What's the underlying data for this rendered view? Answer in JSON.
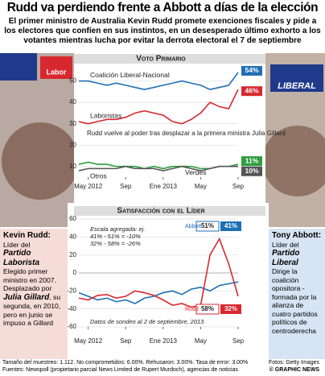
{
  "header": {
    "title": "Rudd va perdiendo frente a Abbott a días de la elección",
    "subtitle": "El primer ministro de Australia Kevin Rudd promete exenciones fiscales y pide a los electores que confíen en sus instintos, en un desesperado último exhorto a los votantes mientras lucha por evitar la derrota electoral el 7 de septiembre"
  },
  "photos": {
    "left_logo": "Labor",
    "right_logo": "LIBERAL"
  },
  "chart_data": [
    {
      "type": "line",
      "title": "Voto Primario",
      "categories": [
        null,
        "May 2012",
        null,
        null,
        null,
        "Sep",
        null,
        null,
        null,
        "Ene 2013",
        null,
        null,
        null,
        "May",
        null,
        null,
        null,
        "Sep"
      ],
      "ylim": [
        5,
        57
      ],
      "yticks": [
        10,
        20,
        30,
        40,
        50
      ],
      "grid": true,
      "series": [
        {
          "name": "Coalición Liberal-Nacional",
          "color": "#1f6fb5",
          "values": [
            50,
            50,
            49,
            48,
            49,
            48,
            47,
            46,
            47,
            48,
            49,
            50,
            49,
            48,
            46,
            47,
            48,
            54
          ],
          "label": "54%"
        },
        {
          "name": "Laboristas",
          "color": "#d7282f",
          "values": [
            31,
            30,
            31,
            32,
            32,
            33,
            35,
            36,
            35,
            34,
            31,
            30,
            32,
            35,
            40,
            38,
            37,
            46
          ],
          "label": "46%"
        },
        {
          "name": "Verdes",
          "color": "#2e9e3e",
          "values": [
            11,
            12,
            11,
            11,
            10,
            10,
            10,
            9,
            10,
            9,
            10,
            10,
            10,
            9,
            9,
            10,
            10,
            11
          ],
          "label": "11%"
        },
        {
          "name": "Otros",
          "color": "#555555",
          "values": [
            8,
            9,
            9,
            9,
            9,
            10,
            9,
            9,
            9,
            8,
            9,
            10,
            9,
            8,
            9,
            10,
            10,
            10
          ],
          "label": "10%"
        }
      ],
      "annotations": [
        "Rudd vuelve al poder tras desplazar a la primera ministra Julia Gillard"
      ]
    },
    {
      "type": "line",
      "title": "Satisfacción con el Líder",
      "categories": [
        null,
        "May 2012",
        null,
        null,
        null,
        "Sep",
        null,
        null,
        null,
        "Ene 2013",
        null,
        null,
        null,
        "May",
        null,
        null,
        null,
        "Sep"
      ],
      "ylim": [
        -60,
        60
      ],
      "yticks": [
        60,
        40,
        20,
        0,
        -20,
        -40,
        -60
      ],
      "grid": true,
      "series": [
        {
          "name": "Abbott",
          "color": "#1f6fb5",
          "values": [
            -22,
            -26,
            -30,
            -28,
            -32,
            -30,
            -34,
            -28,
            -26,
            -22,
            -20,
            -24,
            -18,
            -16,
            -20,
            -14,
            -12,
            -10
          ],
          "dissatisfied": {
            "value": 51,
            "label": "51%"
          },
          "satisfied": {
            "value": 41,
            "label": "41%"
          }
        },
        {
          "name": "Rudd",
          "color": "#d7282f",
          "values": [
            -28,
            -30,
            -25,
            -24,
            -28,
            -26,
            -20,
            -22,
            -25,
            -30,
            -36,
            -34,
            -38,
            -36,
            20,
            38,
            10,
            -26
          ],
          "dissatisfied": {
            "value": 58,
            "label": "58%"
          },
          "satisfied": {
            "value": 32,
            "label": "32%"
          }
        }
      ],
      "annotations": [
        "Escala agregada: ej.",
        "41% - 51% = -10%",
        "32% - 58% = -26%",
        "Datos de sondeo al 2 de septiembre, 2013"
      ]
    }
  ],
  "profiles": {
    "left": {
      "name": "Kevin Rudd:",
      "role": "Líder del",
      "party": "Partido Laborista",
      "bio1": "Elegido primer ministro en 2007. Desplazado por",
      "bio2": "Julia Gillard",
      "bio3": ", su segunda, en 2010, pero en junio se impuso a Gillard"
    },
    "right": {
      "name": "Tony Abbott:",
      "role": "Líder del",
      "party": "Partido Liberal",
      "bio1": "Dirige la coalición opositora -formada por la alianza de cuatro partidos políticos de centroderecha"
    }
  },
  "footer": {
    "line1": "Tamaño del muestreo: 1.112. No comprometidos: 6.00%. Rehusaron: 3.00%. Tasa de error: 3.00%",
    "photos": "Fotos: Getty Images",
    "line2": "Fuentes: Newspoll (propietario parcial News Limited de Rupert Murdoch), agencias de noticias",
    "copyright": "© GRAPHIC NEWS"
  }
}
